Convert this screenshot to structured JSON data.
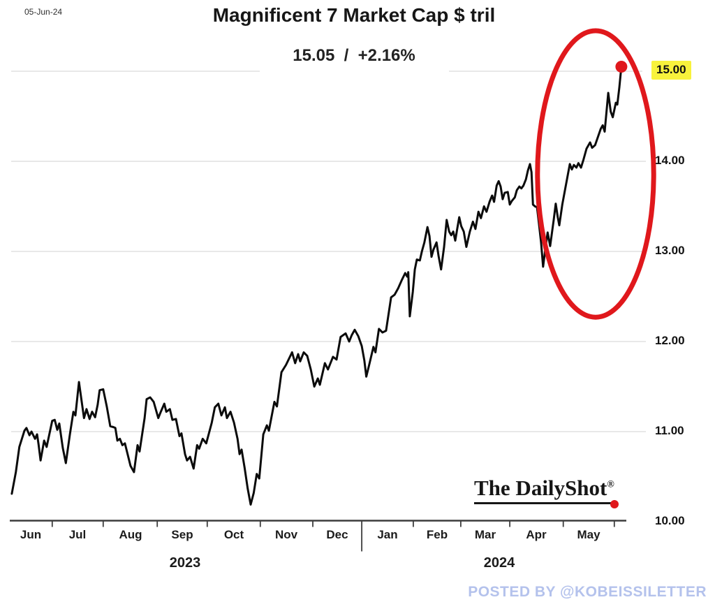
{
  "header": {
    "date_stamp": "05-Jun-24",
    "title": "Magnificent 7 Market Cap $ tril",
    "last_value": "15.05",
    "separator": "  /  ",
    "change_pct": "+2.16%"
  },
  "branding": {
    "logo_part1": "The Daily",
    "logo_part2": "Shot",
    "logo_reg": "®"
  },
  "footer": {
    "posted_by": "POSTED BY @KOBEISSILETTER"
  },
  "colors": {
    "line": "#0b0b0b",
    "annotation_red": "#e0181c",
    "highlight_yellow": "#f8f23c",
    "grid": "#d9d9d9",
    "axis": "#3d3d3d",
    "posted_by_blue": "#b4c2ec"
  },
  "chart_data": {
    "type": "line",
    "title": "Magnificent 7 Market Cap $ tril",
    "subtitle": "15.05 / +2.16%",
    "last_value": 15.05,
    "change_pct": "+2.16%",
    "x_unit": "months since 2023-06-01",
    "xlim": [
      0,
      12.19
    ],
    "ylim": [
      10,
      15.35
    ],
    "grid": "horizontal",
    "x_axis": {
      "months": [
        "Jun",
        "Jul",
        "Aug",
        "Sep",
        "Oct",
        "Nov",
        "Dec",
        "Jan",
        "Feb",
        "Mar",
        "Apr",
        "May"
      ],
      "boundaries_m": [
        0.84,
        1.85,
        2.92,
        3.91,
        4.96,
        6.0,
        6.97,
        7.99,
        8.93,
        9.9,
        10.96,
        11.97
      ],
      "year_separator_index": 6,
      "years": [
        {
          "label": "2023",
          "center_m": 3.47
        },
        {
          "label": "2024",
          "center_m": 9.69
        }
      ]
    },
    "y_axis": {
      "ticks": [
        {
          "value": 15,
          "label": "15.00",
          "highlighted": true
        },
        {
          "value": 14,
          "label": "14.00",
          "highlighted": false
        },
        {
          "value": 13,
          "label": "13.00",
          "highlighted": false
        },
        {
          "value": 12,
          "label": "12.00",
          "highlighted": false
        },
        {
          "value": 11,
          "label": "11.00",
          "highlighted": false
        },
        {
          "value": 10,
          "label": "10.00",
          "highlighted": false
        }
      ]
    },
    "series": [
      {
        "name": "Magnificent 7 combined market cap ($ trillion)",
        "points": [
          [
            0.04,
            10.31
          ],
          [
            0.12,
            10.55
          ],
          [
            0.19,
            10.83
          ],
          [
            0.29,
            11.01
          ],
          [
            0.33,
            11.04
          ],
          [
            0.39,
            10.96
          ],
          [
            0.43,
            11.0
          ],
          [
            0.5,
            10.92
          ],
          [
            0.54,
            10.97
          ],
          [
            0.57,
            10.86
          ],
          [
            0.61,
            10.68
          ],
          [
            0.68,
            10.9
          ],
          [
            0.73,
            10.83
          ],
          [
            0.84,
            11.12
          ],
          [
            0.89,
            11.13
          ],
          [
            0.94,
            11.02
          ],
          [
            0.98,
            11.09
          ],
          [
            1.05,
            10.82
          ],
          [
            1.11,
            10.65
          ],
          [
            1.19,
            10.97
          ],
          [
            1.26,
            11.22
          ],
          [
            1.3,
            11.18
          ],
          [
            1.37,
            11.55
          ],
          [
            1.42,
            11.35
          ],
          [
            1.47,
            11.15
          ],
          [
            1.52,
            11.25
          ],
          [
            1.58,
            11.14
          ],
          [
            1.63,
            11.22
          ],
          [
            1.69,
            11.16
          ],
          [
            1.74,
            11.3
          ],
          [
            1.78,
            11.46
          ],
          [
            1.85,
            11.47
          ],
          [
            1.92,
            11.28
          ],
          [
            1.99,
            11.06
          ],
          [
            2.05,
            11.05
          ],
          [
            2.09,
            11.04
          ],
          [
            2.13,
            10.9
          ],
          [
            2.18,
            10.92
          ],
          [
            2.23,
            10.85
          ],
          [
            2.28,
            10.87
          ],
          [
            2.39,
            10.62
          ],
          [
            2.46,
            10.55
          ],
          [
            2.53,
            10.85
          ],
          [
            2.57,
            10.78
          ],
          [
            2.67,
            11.15
          ],
          [
            2.71,
            11.36
          ],
          [
            2.78,
            11.38
          ],
          [
            2.85,
            11.33
          ],
          [
            2.94,
            11.15
          ],
          [
            2.99,
            11.22
          ],
          [
            3.06,
            11.31
          ],
          [
            3.1,
            11.22
          ],
          [
            3.17,
            11.25
          ],
          [
            3.22,
            11.13
          ],
          [
            3.29,
            11.14
          ],
          [
            3.36,
            10.95
          ],
          [
            3.4,
            10.98
          ],
          [
            3.47,
            10.75
          ],
          [
            3.51,
            10.68
          ],
          [
            3.57,
            10.72
          ],
          [
            3.64,
            10.59
          ],
          [
            3.71,
            10.85
          ],
          [
            3.75,
            10.81
          ],
          [
            3.82,
            10.92
          ],
          [
            3.89,
            10.87
          ],
          [
            4.0,
            11.1
          ],
          [
            4.06,
            11.27
          ],
          [
            4.13,
            11.31
          ],
          [
            4.19,
            11.18
          ],
          [
            4.26,
            11.27
          ],
          [
            4.3,
            11.15
          ],
          [
            4.37,
            11.22
          ],
          [
            4.44,
            11.1
          ],
          [
            4.51,
            10.92
          ],
          [
            4.55,
            10.75
          ],
          [
            4.59,
            10.8
          ],
          [
            4.65,
            10.6
          ],
          [
            4.71,
            10.37
          ],
          [
            4.77,
            10.19
          ],
          [
            4.83,
            10.32
          ],
          [
            4.89,
            10.53
          ],
          [
            4.94,
            10.48
          ],
          [
            5.02,
            10.97
          ],
          [
            5.09,
            11.07
          ],
          [
            5.13,
            11.01
          ],
          [
            5.24,
            11.33
          ],
          [
            5.29,
            11.28
          ],
          [
            5.38,
            11.66
          ],
          [
            5.47,
            11.74
          ],
          [
            5.59,
            11.88
          ],
          [
            5.65,
            11.76
          ],
          [
            5.71,
            11.86
          ],
          [
            5.75,
            11.78
          ],
          [
            5.82,
            11.88
          ],
          [
            5.89,
            11.84
          ],
          [
            5.96,
            11.69
          ],
          [
            6.03,
            11.5
          ],
          [
            6.1,
            11.59
          ],
          [
            6.14,
            11.52
          ],
          [
            6.24,
            11.76
          ],
          [
            6.3,
            11.69
          ],
          [
            6.4,
            11.83
          ],
          [
            6.47,
            11.8
          ],
          [
            6.55,
            12.05
          ],
          [
            6.65,
            12.09
          ],
          [
            6.72,
            12.0
          ],
          [
            6.77,
            12.07
          ],
          [
            6.83,
            12.13
          ],
          [
            6.9,
            12.06
          ],
          [
            6.97,
            11.95
          ],
          [
            7.02,
            11.79
          ],
          [
            7.06,
            11.61
          ],
          [
            7.12,
            11.75
          ],
          [
            7.2,
            11.94
          ],
          [
            7.24,
            11.88
          ],
          [
            7.31,
            12.14
          ],
          [
            7.38,
            12.1
          ],
          [
            7.45,
            12.12
          ],
          [
            7.55,
            12.49
          ],
          [
            7.62,
            12.52
          ],
          [
            7.69,
            12.59
          ],
          [
            7.76,
            12.68
          ],
          [
            7.83,
            12.76
          ],
          [
            7.87,
            12.72
          ],
          [
            7.89,
            12.77
          ],
          [
            7.92,
            12.28
          ],
          [
            7.98,
            12.55
          ],
          [
            8.02,
            12.8
          ],
          [
            8.06,
            12.91
          ],
          [
            8.12,
            12.9
          ],
          [
            8.16,
            13.0
          ],
          [
            8.21,
            13.1
          ],
          [
            8.27,
            13.27
          ],
          [
            8.31,
            13.17
          ],
          [
            8.35,
            12.94
          ],
          [
            8.39,
            13.02
          ],
          [
            8.45,
            13.1
          ],
          [
            8.49,
            12.95
          ],
          [
            8.54,
            12.8
          ],
          [
            8.6,
            13.05
          ],
          [
            8.65,
            13.35
          ],
          [
            8.7,
            13.22
          ],
          [
            8.74,
            13.18
          ],
          [
            8.78,
            13.22
          ],
          [
            8.82,
            13.12
          ],
          [
            8.86,
            13.25
          ],
          [
            8.9,
            13.38
          ],
          [
            8.94,
            13.28
          ],
          [
            8.99,
            13.22
          ],
          [
            9.04,
            13.05
          ],
          [
            9.11,
            13.22
          ],
          [
            9.17,
            13.33
          ],
          [
            9.22,
            13.25
          ],
          [
            9.28,
            13.44
          ],
          [
            9.33,
            13.37
          ],
          [
            9.39,
            13.5
          ],
          [
            9.44,
            13.44
          ],
          [
            9.5,
            13.55
          ],
          [
            9.55,
            13.62
          ],
          [
            9.59,
            13.55
          ],
          [
            9.64,
            13.73
          ],
          [
            9.68,
            13.78
          ],
          [
            9.72,
            13.72
          ],
          [
            9.76,
            13.58
          ],
          [
            9.8,
            13.65
          ],
          [
            9.86,
            13.66
          ],
          [
            9.9,
            13.52
          ],
          [
            9.94,
            13.56
          ],
          [
            10.0,
            13.6
          ],
          [
            10.04,
            13.68
          ],
          [
            10.09,
            13.72
          ],
          [
            10.13,
            13.7
          ],
          [
            10.17,
            13.73
          ],
          [
            10.22,
            13.8
          ],
          [
            10.26,
            13.9
          ],
          [
            10.3,
            13.97
          ],
          [
            10.33,
            13.88
          ],
          [
            10.36,
            13.52
          ],
          [
            10.4,
            13.5
          ],
          [
            10.44,
            13.49
          ],
          [
            10.48,
            13.3
          ],
          [
            10.52,
            13.1
          ],
          [
            10.56,
            12.83
          ],
          [
            10.61,
            13.05
          ],
          [
            10.65,
            13.21
          ],
          [
            10.7,
            13.06
          ],
          [
            10.77,
            13.35
          ],
          [
            10.81,
            13.53
          ],
          [
            10.85,
            13.38
          ],
          [
            10.88,
            13.29
          ],
          [
            10.94,
            13.52
          ],
          [
            11.0,
            13.7
          ],
          [
            11.05,
            13.85
          ],
          [
            11.09,
            13.97
          ],
          [
            11.13,
            13.91
          ],
          [
            11.17,
            13.96
          ],
          [
            11.22,
            13.93
          ],
          [
            11.26,
            13.98
          ],
          [
            11.31,
            13.93
          ],
          [
            11.36,
            14.02
          ],
          [
            11.42,
            14.14
          ],
          [
            11.49,
            14.21
          ],
          [
            11.53,
            14.15
          ],
          [
            11.59,
            14.18
          ],
          [
            11.7,
            14.36
          ],
          [
            11.74,
            14.4
          ],
          [
            11.78,
            14.33
          ],
          [
            11.85,
            14.76
          ],
          [
            11.9,
            14.55
          ],
          [
            11.94,
            14.49
          ],
          [
            12.0,
            14.65
          ],
          [
            12.03,
            14.63
          ],
          [
            12.07,
            14.82
          ],
          [
            12.11,
            15.05
          ]
        ]
      }
    ],
    "annotations": {
      "ellipse": {
        "center_m": 11.6,
        "center_value": 13.86,
        "radius_m": 1.15,
        "radius_value": 1.59
      },
      "endpoint_dot": {
        "m": 12.11,
        "value": 15.05
      }
    }
  }
}
